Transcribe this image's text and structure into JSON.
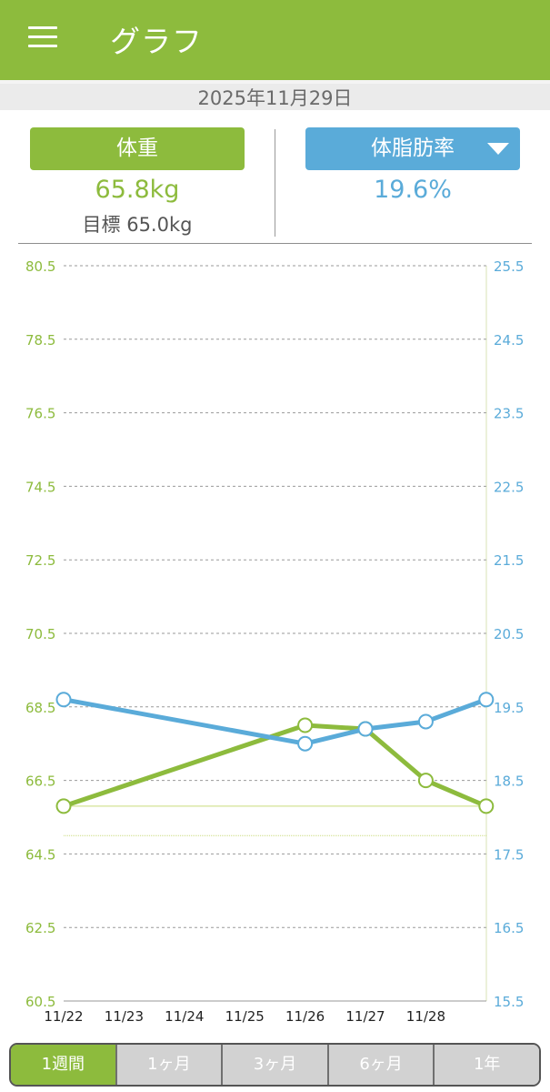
{
  "app_bar": {
    "title": "グラフ",
    "menu_icon": "menu-icon"
  },
  "date": "2025年11月29日",
  "metrics": {
    "weight_label": "体重",
    "weight_value": "65.8kg",
    "goal_text": "目標 65.0kg",
    "fat_label": "体脂肪率",
    "fat_value": "19.6%",
    "fat_dropdown_icon": "caret-down-icon"
  },
  "colors": {
    "weight": "#8dbb3d",
    "fat": "#5aabd9"
  },
  "chart_data": {
    "type": "line",
    "x": [
      "11/22",
      "11/23",
      "11/24",
      "11/25",
      "11/26",
      "11/27",
      "11/28",
      "11/29"
    ],
    "xtick_labels": [
      "11/22",
      "11/23",
      "11/24",
      "11/25",
      "11/26",
      "11/27",
      "11/28"
    ],
    "left_axis": {
      "ylim": [
        60.5,
        80.5
      ],
      "ticks": [
        "80.5",
        "78.5",
        "76.5",
        "74.5",
        "72.5",
        "70.5",
        "68.5",
        "66.5",
        "64.5",
        "62.5",
        "60.5"
      ]
    },
    "right_axis": {
      "ylim": [
        15.5,
        25.5
      ],
      "ticks": [
        "25.5",
        "24.5",
        "23.5",
        "22.5",
        "21.5",
        "20.5",
        "19.5",
        "18.5",
        "17.5",
        "16.5",
        "15.5"
      ]
    },
    "series": [
      {
        "axis": "left",
        "color": "#8dbb3d",
        "points": [
          {
            "x": "11/22",
            "y": 65.8
          },
          {
            "x": "11/26",
            "y": 68.0
          },
          {
            "x": "11/27",
            "y": 67.9
          },
          {
            "x": "11/28",
            "y": 66.5
          },
          {
            "x": "11/29",
            "y": 65.8
          }
        ]
      },
      {
        "axis": "right",
        "color": "#5aabd9",
        "points": [
          {
            "x": "11/22",
            "y": 19.6
          },
          {
            "x": "11/26",
            "y": 19.0
          },
          {
            "x": "11/27",
            "y": 19.2
          },
          {
            "x": "11/28",
            "y": 19.3
          },
          {
            "x": "11/29",
            "y": 19.6
          }
        ]
      }
    ],
    "reference_lines": [
      {
        "axis": "left",
        "y": 65.8
      },
      {
        "axis": "left",
        "y": 65.0
      }
    ],
    "grid": true
  },
  "range_tabs": [
    {
      "label": "1週間",
      "active": true
    },
    {
      "label": "1ヶ月",
      "active": false
    },
    {
      "label": "3ヶ月",
      "active": false
    },
    {
      "label": "6ヶ月",
      "active": false
    },
    {
      "label": "1年",
      "active": false
    }
  ]
}
